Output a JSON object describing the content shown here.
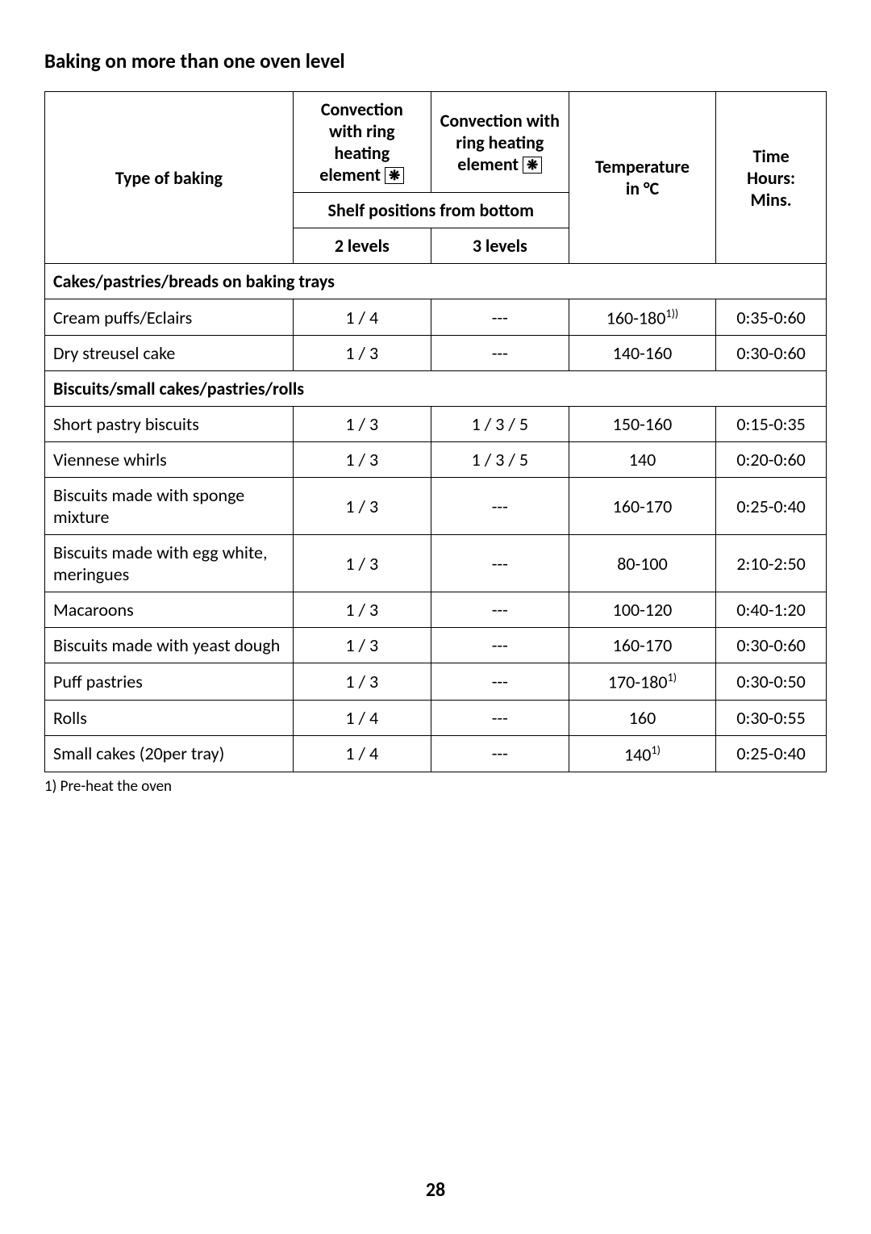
{
  "page_title": "Baking on more than one oven level",
  "page_number": "28",
  "footnote": "1) Pre-heat the oven",
  "table": {
    "head": {
      "type_of_baking": "Type of baking",
      "conv_a_line1": "Convection",
      "conv_a_line2": "with ring",
      "conv_a_line3": "heating",
      "conv_a_line4": "element",
      "conv_b_line1": "Convection with",
      "conv_b_line2": "ring heating",
      "conv_b_line3": "element",
      "temperature_line1": "Temperature",
      "temperature_line2": "in °C",
      "time_line1": "Time",
      "time_line2": "Hours:",
      "time_line3": "Mins.",
      "shelf_positions": "Shelf positions from bottom",
      "two_levels": "2 levels",
      "three_levels": "3 levels",
      "fan_icon_glyph": "❋"
    },
    "section1_label": "Cakes/pastries/breads on baking trays",
    "section2_label": "Biscuits/small cakes/pastries/rolls",
    "rows1": [
      {
        "name": "Cream puffs/Eclairs",
        "l2": "1 / 4",
        "l3": "---",
        "temp": "160-180",
        "temp_sup": "1))",
        "time": "0:35-0:60"
      },
      {
        "name": "Dry streusel cake",
        "l2": "1 / 3",
        "l3": "---",
        "temp": "140-160",
        "temp_sup": "",
        "time": "0:30-0:60"
      }
    ],
    "rows2": [
      {
        "name": "Short pastry biscuits",
        "l2": "1 / 3",
        "l3": "1 / 3 / 5",
        "temp": "150-160",
        "temp_sup": "",
        "time": "0:15-0:35"
      },
      {
        "name": "Viennese whirls",
        "l2": "1 / 3",
        "l3": "1 / 3 / 5",
        "temp": "140",
        "temp_sup": "",
        "time": "0:20-0:60"
      },
      {
        "name": "Biscuits made with sponge mixture",
        "l2": "1 / 3",
        "l3": "---",
        "temp": "160-170",
        "temp_sup": "",
        "time": "0:25-0:40"
      },
      {
        "name": "Biscuits made with egg white, meringues",
        "l2": "1 / 3",
        "l3": "---",
        "temp": "80-100",
        "temp_sup": "",
        "time": "2:10-2:50"
      },
      {
        "name": "Macaroons",
        "l2": "1 / 3",
        "l3": "---",
        "temp": "100-120",
        "temp_sup": "",
        "time": "0:40-1:20"
      },
      {
        "name": "Biscuits made with yeast dough",
        "l2": "1 / 3",
        "l3": "---",
        "temp": "160-170",
        "temp_sup": "",
        "time": "0:30-0:60"
      },
      {
        "name": "Puff pastries",
        "l2": "1 / 3",
        "l3": "---",
        "temp": "170-180",
        "temp_sup": "1)",
        "time": "0:30-0:50"
      },
      {
        "name": "Rolls",
        "l2": "1 / 4",
        "l3": "---",
        "temp": "160",
        "temp_sup": "",
        "time": "0:30-0:55"
      },
      {
        "name": "Small cakes (20per tray)",
        "l2": "1 / 4",
        "l3": "---",
        "temp": "140",
        "temp_sup": "1)",
        "time": "0:25-0:40"
      }
    ]
  }
}
